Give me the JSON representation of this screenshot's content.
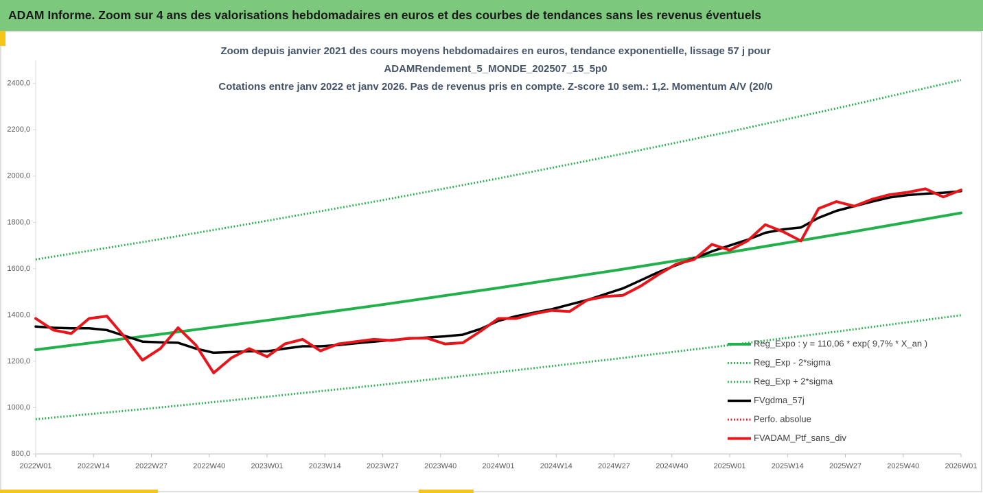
{
  "header": {
    "title": "ADAM Informe. Zoom sur 4 ans des valorisations hebdomadaires en euros et des courbes de tendances sans les revenus éventuels"
  },
  "chart_data": {
    "type": "line",
    "title": [
      "Zoom depuis janvier 2021 des cours moyens hebdomadaires  en euros, tendance exponentielle, lissage 57 j pour",
      "ADAMRendement_5_MONDE_202507_15_5p0",
      "Cotations entre janv 2022 et janv 2026. Pas de revenus pris en compte. Z-score 10 sem.: 1,2. Momentum A/V (20/0"
    ],
    "xlim": [
      0,
      208
    ],
    "xticks": [
      {
        "value": 0,
        "label": "2022W01"
      },
      {
        "value": 13,
        "label": "2022W14"
      },
      {
        "value": 26,
        "label": "2022W27"
      },
      {
        "value": 39,
        "label": "2022W40"
      },
      {
        "value": 52,
        "label": "2023W01"
      },
      {
        "value": 65,
        "label": "2023W14"
      },
      {
        "value": 78,
        "label": "2023W27"
      },
      {
        "value": 91,
        "label": "2023W40"
      },
      {
        "value": 104,
        "label": "2024W01"
      },
      {
        "value": 117,
        "label": "2024W14"
      },
      {
        "value": 130,
        "label": "2024W27"
      },
      {
        "value": 143,
        "label": "2024W40"
      },
      {
        "value": 156,
        "label": "2025W01"
      },
      {
        "value": 169,
        "label": "2025W14"
      },
      {
        "value": 182,
        "label": "2025W27"
      },
      {
        "value": 195,
        "label": "2025W40"
      },
      {
        "value": 208,
        "label": "2026W01"
      }
    ],
    "ylim": [
      800,
      2500
    ],
    "yticks": [
      {
        "value": 800,
        "label": "800,0"
      },
      {
        "value": 1000,
        "label": "1000,0"
      },
      {
        "value": 1200,
        "label": "1200,0"
      },
      {
        "value": 1400,
        "label": "1400,0"
      },
      {
        "value": 1600,
        "label": "1600,0"
      },
      {
        "value": 1800,
        "label": "1800,0"
      },
      {
        "value": 2000,
        "label": "2000,0"
      },
      {
        "value": 2200,
        "label": "2200,0"
      },
      {
        "value": 2400,
        "label": "2400,0"
      }
    ],
    "grid": false,
    "legend": "lower right",
    "series": [
      {
        "name": "Reg_Expo : y = 110,06 * exp( 9,7% *  X_an )",
        "color": "#22b04b",
        "style": "solid",
        "width": 4,
        "x": [
          0,
          26,
          52,
          78,
          104,
          130,
          156,
          182,
          208
        ],
        "values": [
          1250,
          1312,
          1377,
          1445,
          1517,
          1592,
          1671,
          1754,
          1841
        ]
      },
      {
        "name": "Reg_Exp - 2*sigma",
        "color": "#22b04b",
        "style": "dotted",
        "width": 3,
        "x": [
          0,
          26,
          52,
          78,
          104,
          130,
          156,
          182,
          208
        ],
        "values": [
          950,
          997,
          1047,
          1099,
          1153,
          1210,
          1270,
          1333,
          1399
        ]
      },
      {
        "name": "Reg_Exp + 2*sigma",
        "color": "#22b04b",
        "style": "dotted",
        "width": 3,
        "x": [
          0,
          26,
          52,
          78,
          104,
          130,
          156,
          182,
          208
        ],
        "values": [
          1640,
          1721,
          1807,
          1896,
          1990,
          2089,
          2192,
          2301,
          2415
        ]
      },
      {
        "name": "FVgdma_57j",
        "color": "#000000",
        "style": "solid",
        "width": 3.5,
        "x": [
          0,
          4,
          8,
          12,
          16,
          20,
          24,
          28,
          32,
          36,
          40,
          44,
          48,
          52,
          56,
          60,
          64,
          68,
          72,
          76,
          80,
          84,
          88,
          92,
          96,
          100,
          104,
          108,
          112,
          116,
          120,
          124,
          128,
          132,
          136,
          140,
          144,
          148,
          152,
          156,
          160,
          164,
          168,
          172,
          176,
          180,
          184,
          188,
          192,
          196,
          200,
          204,
          208
        ],
        "values": [
          1350,
          1345,
          1343,
          1343,
          1335,
          1310,
          1285,
          1282,
          1280,
          1255,
          1237,
          1240,
          1243,
          1243,
          1255,
          1265,
          1265,
          1270,
          1278,
          1285,
          1292,
          1298,
          1303,
          1308,
          1315,
          1340,
          1375,
          1395,
          1410,
          1425,
          1445,
          1465,
          1490,
          1515,
          1550,
          1585,
          1615,
          1645,
          1675,
          1700,
          1725,
          1755,
          1770,
          1778,
          1820,
          1850,
          1870,
          1890,
          1908,
          1918,
          1924,
          1928,
          1935
        ]
      },
      {
        "name": "Perfo. absolue",
        "color": "#e8151b",
        "style": "dotted",
        "width": 3,
        "x": [],
        "values": []
      },
      {
        "name": "FVADAM_Ptf_sans_div",
        "color": "#e8151b",
        "style": "solid",
        "width": 4,
        "x": [
          0,
          4,
          8,
          12,
          16,
          20,
          24,
          28,
          32,
          36,
          40,
          44,
          48,
          52,
          56,
          60,
          64,
          68,
          72,
          76,
          80,
          84,
          88,
          92,
          96,
          100,
          104,
          108,
          112,
          116,
          120,
          124,
          128,
          132,
          136,
          140,
          144,
          148,
          152,
          156,
          160,
          164,
          168,
          172,
          176,
          180,
          184,
          188,
          192,
          196,
          200,
          204,
          208
        ],
        "values": [
          1385,
          1335,
          1320,
          1385,
          1395,
          1305,
          1205,
          1255,
          1345,
          1270,
          1150,
          1215,
          1255,
          1220,
          1275,
          1295,
          1245,
          1275,
          1285,
          1295,
          1290,
          1300,
          1300,
          1275,
          1280,
          1330,
          1385,
          1385,
          1405,
          1420,
          1415,
          1465,
          1480,
          1485,
          1525,
          1575,
          1620,
          1640,
          1705,
          1680,
          1720,
          1790,
          1760,
          1720,
          1860,
          1890,
          1870,
          1900,
          1920,
          1930,
          1945,
          1910,
          1940
        ]
      }
    ]
  }
}
